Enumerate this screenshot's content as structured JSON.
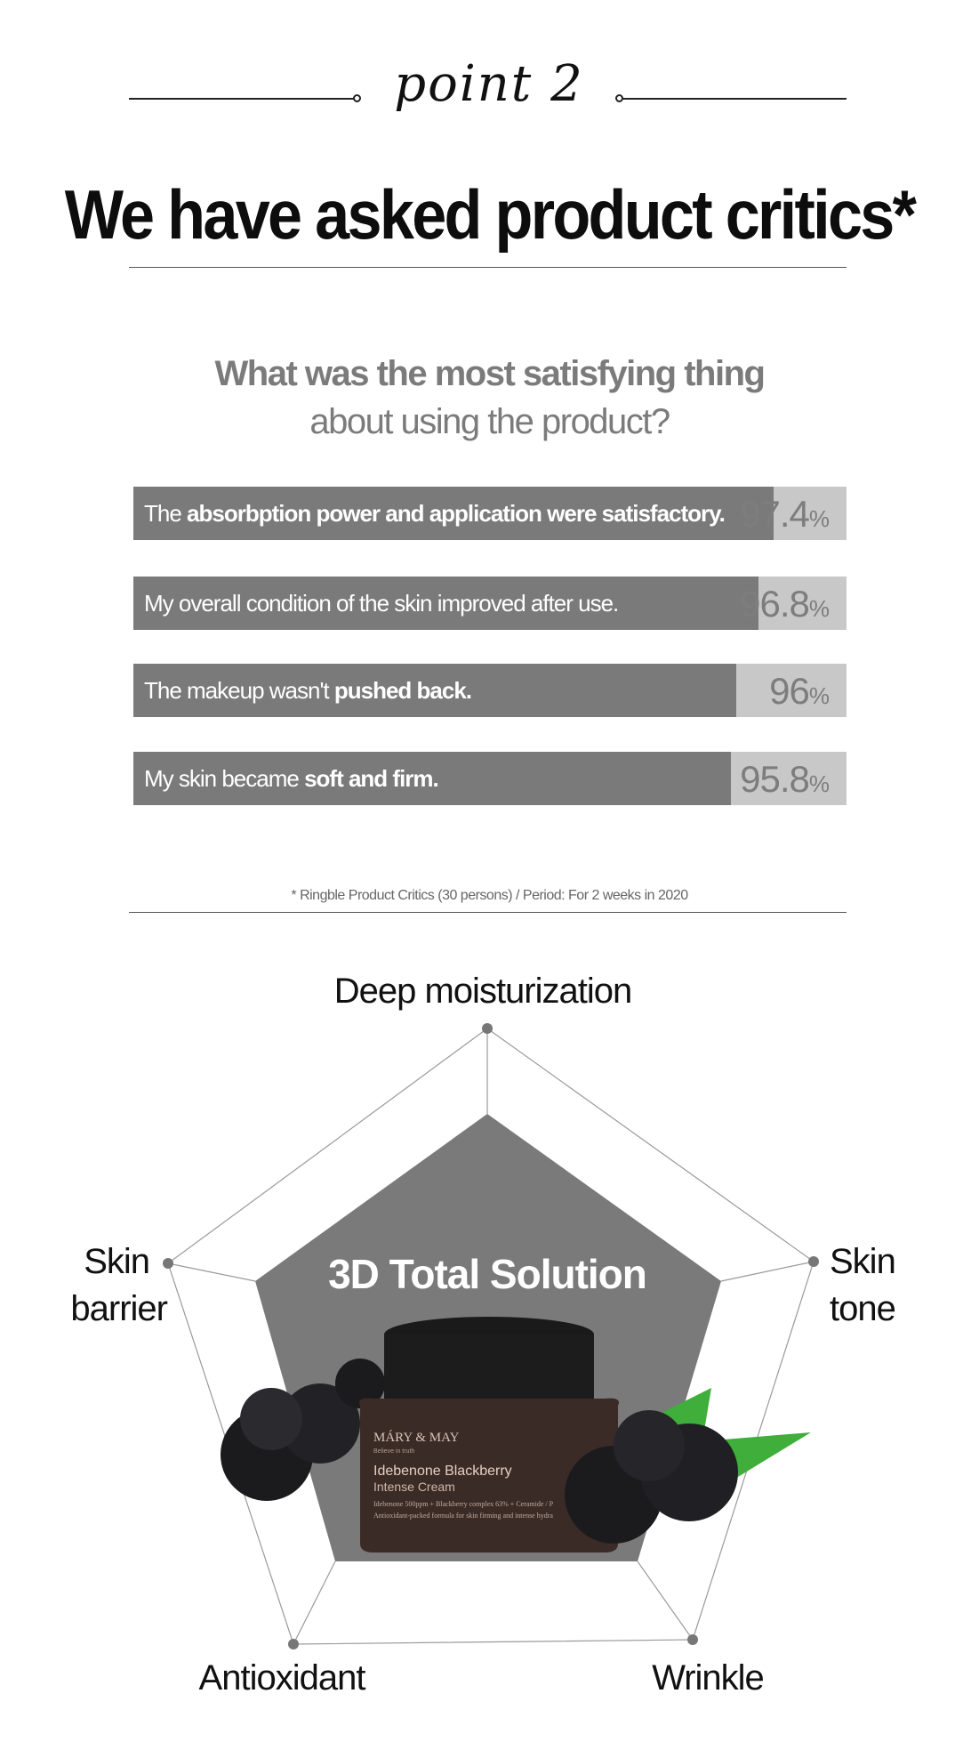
{
  "header": {
    "point_label": "point 2",
    "headline": "We have asked product critics*"
  },
  "survey": {
    "question_line1": "What was the most satisfying thing",
    "question_line2": "about using the product?",
    "items": [
      {
        "text_plain": "The ",
        "text_bold": "absorbption power and application were satisfactory.",
        "value": "97.4",
        "unit": "%"
      },
      {
        "text_plain": "My overall condition of the skin improved after use.",
        "text_bold": "",
        "value": "96.8",
        "unit": "%"
      },
      {
        "text_plain": "The makeup wasn't ",
        "text_bold": "pushed back.",
        "value": "96",
        "unit": "%"
      },
      {
        "text_plain": "My skin became ",
        "text_bold": "soft and firm.",
        "value": "95.8",
        "unit": "%"
      }
    ],
    "footnote": "* Ringble Product Critics (30 persons) / Period: For 2 weeks in 2020"
  },
  "chart_data": [
    {
      "type": "bar",
      "categories": [
        "The absorbption power and application were satisfactory.",
        "My overall condition of the skin improved after use.",
        "The makeup wasn't pushed back.",
        "My skin became soft and firm."
      ],
      "values": [
        97.4,
        96.8,
        96,
        95.8
      ],
      "unit": "%"
    },
    {
      "type": "radar",
      "axes": [
        "Deep moisturization",
        "Skin tone",
        "Wrinkle",
        "Antioxidant",
        "Skin barrier"
      ],
      "center_label": "3D Total Solution"
    }
  ],
  "radar": {
    "labels": {
      "top": "Deep moisturization",
      "right_1": "Skin",
      "right_2": "tone",
      "left_1": "Skin",
      "left_2": "barrier",
      "bottom_left": "Antioxidant",
      "bottom_right": "Wrinkle"
    },
    "center_label": "3D Total Solution",
    "colors": {
      "fill": "#7a7a7a",
      "grid": "#9a9a9a",
      "vertex": "#777777"
    }
  },
  "product": {
    "brand": "MÁRY & MAY",
    "tagline": "Believe in truth",
    "name_line1": "Idebenone Blackberry",
    "name_line2": "Intense Cream",
    "ingredients": "Idebenone 500ppm + Blackberry complex 63% + Ceramide / P",
    "desc": "Antioxidant-packed formula for skin firming and intense hydra"
  }
}
